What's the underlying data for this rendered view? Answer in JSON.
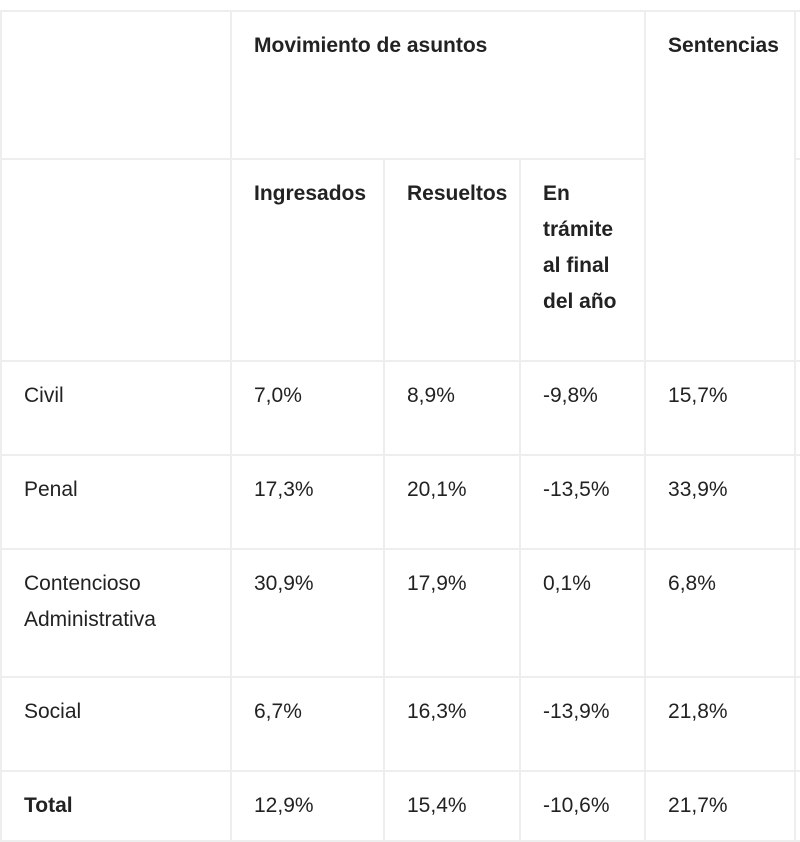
{
  "table": {
    "group_headers": {
      "movimiento": "Movimiento de asuntos",
      "sentencias": "Sentencias"
    },
    "sub_headers": [
      "Ingresados",
      "Resueltos",
      "En trámite al final del año"
    ],
    "rows": [
      {
        "label": "Civil",
        "values": [
          "7,0%",
          "8,9%",
          "-9,8%",
          "15,7%"
        ]
      },
      {
        "label": "Penal",
        "values": [
          "17,3%",
          "20,1%",
          "-13,5%",
          "33,9%"
        ]
      },
      {
        "label": "Contencioso Administrativa",
        "values": [
          "30,9%",
          "17,9%",
          "0,1%",
          "6,8%"
        ]
      },
      {
        "label": "Social",
        "values": [
          "6,7%",
          "16,3%",
          "-13,9%",
          "21,8%"
        ]
      },
      {
        "label": "Total",
        "values": [
          "12,9%",
          "15,4%",
          "-10,6%",
          "21,7%"
        ]
      }
    ]
  }
}
